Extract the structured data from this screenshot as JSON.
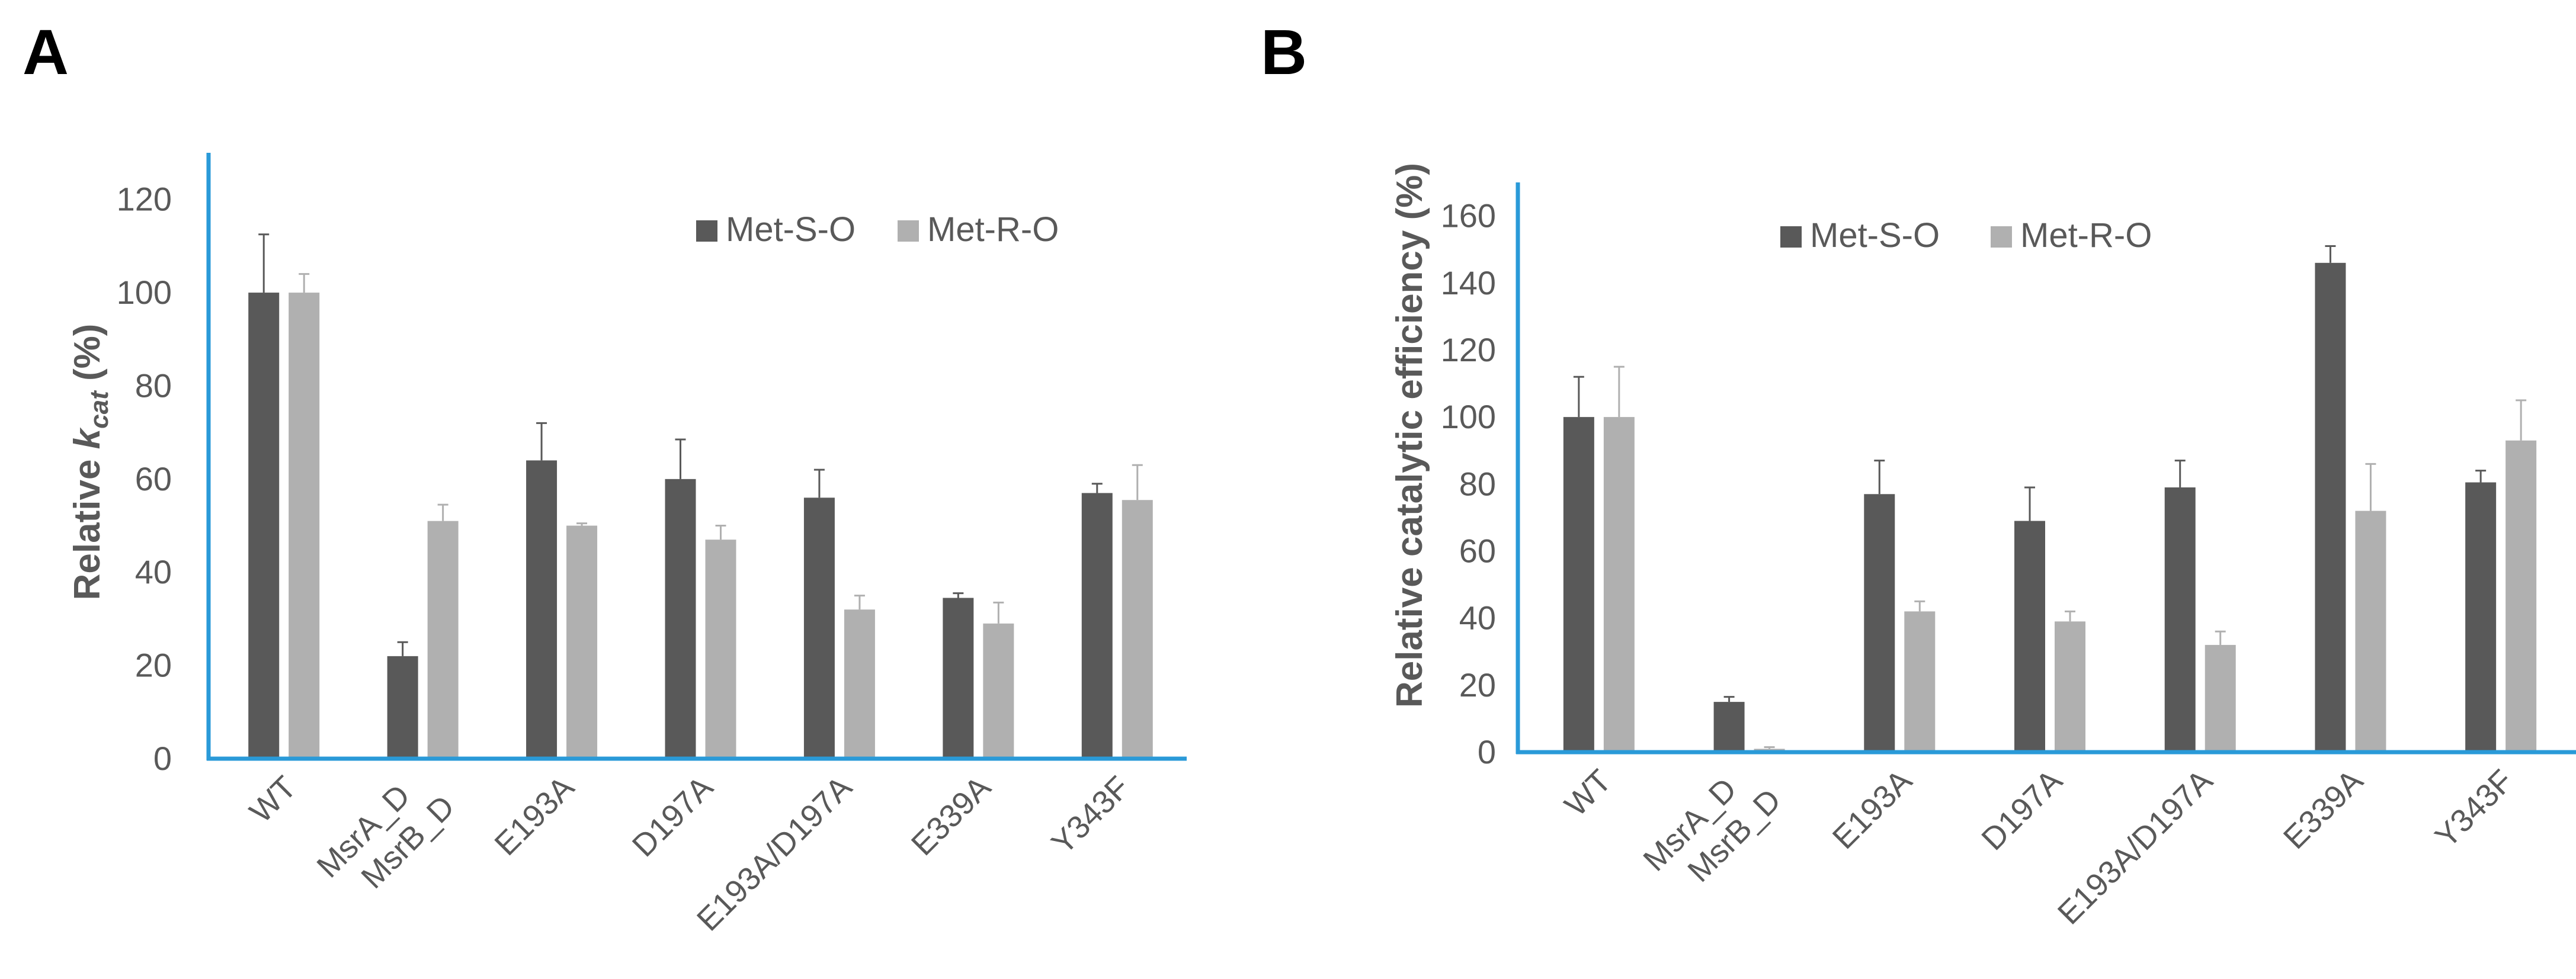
{
  "chart_data": [
    {
      "panel_label": "A",
      "type": "bar",
      "categories": [
        "WT",
        "MsrA_D\nMsrB_D",
        "E193A",
        "D197A",
        "E193A/D197A",
        "E339A",
        "Y343F"
      ],
      "series": [
        {
          "name": "Met-S-O",
          "color": "#595959",
          "values": [
            100,
            22,
            64,
            60,
            56,
            34.5,
            57
          ],
          "errors": [
            12.5,
            3,
            8,
            8.5,
            6,
            1,
            2
          ]
        },
        {
          "name": "Met-R-O",
          "color": "#b0b0b0",
          "values": [
            100,
            51,
            50,
            47,
            32,
            29,
            55.5
          ],
          "errors": [
            4,
            3.5,
            0.5,
            3,
            3,
            4.5,
            7.5
          ]
        }
      ],
      "ylabel_prefix": "Relative ",
      "ylabel_k": "k",
      "ylabel_sub": "cat",
      "ylabel_suffix": " (%)",
      "ylim": [
        0,
        130
      ],
      "yticks": [
        0,
        20,
        40,
        60,
        80,
        100,
        120
      ],
      "legend": "top-right",
      "grid": false
    },
    {
      "panel_label": "B",
      "type": "bar",
      "categories": [
        "WT",
        "MsrA_D\nMsrB_D",
        "E193A",
        "D197A",
        "E193A/D197A",
        "E339A",
        "Y343F"
      ],
      "series": [
        {
          "name": "Met-S-O",
          "color": "#595959",
          "values": [
            100,
            15,
            77,
            69,
            79,
            146,
            80.5
          ],
          "errors": [
            12,
            1.5,
            10,
            10,
            8,
            5,
            3.5
          ]
        },
        {
          "name": "Met-R-O",
          "color": "#b0b0b0",
          "values": [
            100,
            1,
            42,
            39,
            32,
            72,
            93
          ],
          "errors": [
            15,
            0.5,
            3,
            3,
            4,
            14,
            12
          ]
        }
      ],
      "ylabel": "Relative catalytic efficiency (%)",
      "ylim": [
        0,
        170
      ],
      "yticks": [
        0,
        20,
        40,
        60,
        80,
        100,
        120,
        140,
        160
      ],
      "legend": "top-right",
      "grid": false
    }
  ]
}
